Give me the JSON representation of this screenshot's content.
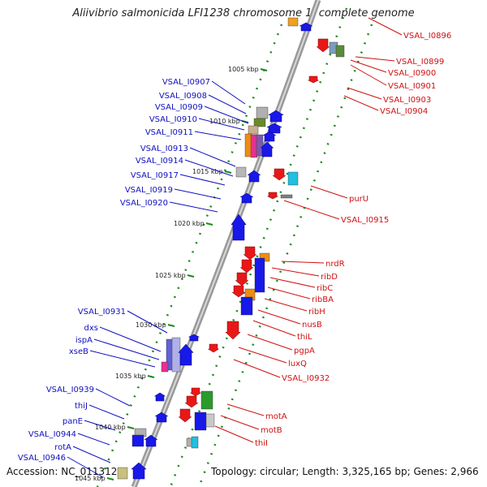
{
  "title": "Aliivibrio salmonicida LFI1238 chromosome 1, complete genome",
  "accession": "Accession: NC_011312",
  "summary": "Topology: circular; Length: 3,325,165 bp; Genes: 2,966",
  "colors": {
    "backbone": "#808080",
    "forward_gene": "#1818e8",
    "reverse_gene": "#e81818",
    "forward_label": "#1010c0",
    "reverse_label": "#d01010",
    "tick": "#1a8a1a"
  },
  "kbp_ticks": [
    "1005 kbp",
    "1010 kbp",
    "1015 kbp",
    "1020 kbp",
    "1025 kbp",
    "1030 kbp",
    "1035 kbp",
    "1040 kbp",
    "1045 kbp"
  ],
  "forward_labels": [
    "VSAL_I0907",
    "VSAL_I0908",
    "VSAL_I0909",
    "VSAL_I0910",
    "VSAL_I0911",
    "VSAL_I0913",
    "VSAL_I0914",
    "VSAL_I0917",
    "VSAL_I0919",
    "VSAL_I0920",
    "VSAL_I0931",
    "dxs",
    "ispA",
    "xseB",
    "VSAL_I0939",
    "thiJ",
    "panE",
    "VSAL_I0944",
    "rotA",
    "VSAL_I0946"
  ],
  "reverse_labels": [
    "VSAL_I0896",
    "VSAL_I0899",
    "VSAL_I0900",
    "VSAL_I0901",
    "VSAL_I0903",
    "VSAL_I0904",
    "purU",
    "VSAL_I0915",
    "nrdR",
    "ribD",
    "ribC",
    "ribBA",
    "ribH",
    "nusB",
    "thiL",
    "pgpA",
    "luxQ",
    "VSAL_I0932",
    "motA",
    "motB",
    "thiI"
  ]
}
